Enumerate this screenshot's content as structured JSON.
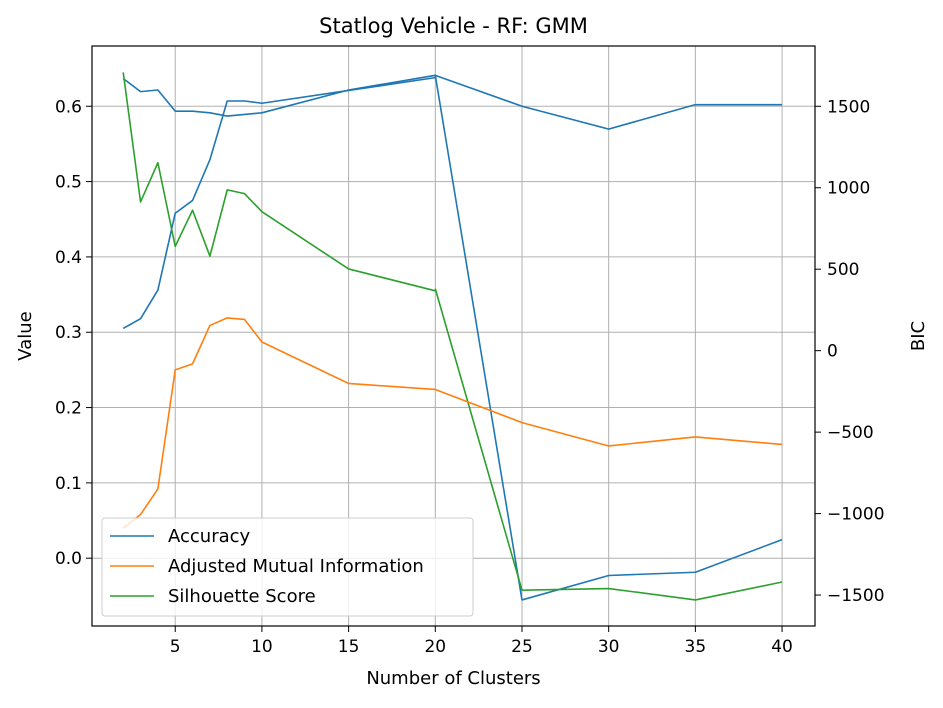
{
  "chart_data": {
    "type": "line",
    "title": "Statlog Vehicle - RF: GMM",
    "xlabel": "Number of Clusters",
    "ylabel": "Value",
    "y2label": "BIC",
    "x": [
      2,
      3,
      4,
      5,
      6,
      7,
      8,
      9,
      10,
      15,
      20,
      25,
      30,
      35,
      40
    ],
    "xlim": [
      0.2,
      41.9
    ],
    "ylim": [
      -0.09,
      0.68
    ],
    "y2lim": [
      -1690,
      1870
    ],
    "xticks": [
      5,
      10,
      15,
      20,
      25,
      30,
      35,
      40
    ],
    "yticks": [
      0.0,
      0.1,
      0.2,
      0.3,
      0.4,
      0.5,
      0.6
    ],
    "y2ticks": [
      -1500,
      -1000,
      -500,
      0,
      500,
      1000,
      1500
    ],
    "xtick_labels": [
      "5",
      "10",
      "15",
      "20",
      "25",
      "30",
      "35",
      "40"
    ],
    "ytick_labels": [
      "0.0",
      "0.1",
      "0.2",
      "0.3",
      "0.4",
      "0.5",
      "0.6"
    ],
    "y2tick_labels": [
      "−1500",
      "−1000",
      "−500",
      "0",
      "500",
      "1000",
      "1500"
    ],
    "grid": true,
    "legend_position": "lower-left",
    "series": [
      {
        "name": "Accuracy",
        "axis": "left",
        "color": "#1f77b4",
        "values": [
          0.305,
          0.318,
          0.356,
          0.458,
          0.475,
          0.529,
          0.607,
          0.607,
          0.604,
          0.621,
          0.638,
          null,
          null,
          null,
          null
        ]
      },
      {
        "name": "Adjusted Mutual Information",
        "axis": "left",
        "color": "#ff7f0e",
        "values": [
          0.04,
          0.058,
          0.092,
          0.25,
          0.258,
          0.309,
          0.319,
          0.317,
          0.287,
          0.232,
          0.224,
          0.18,
          0.149,
          0.161,
          0.151
        ]
      },
      {
        "name": "Silhouette Score",
        "axis": "left",
        "color": "#2ca02c",
        "values": [
          0.645,
          0.473,
          0.525,
          0.414,
          0.462,
          0.401,
          0.489,
          0.484,
          0.46,
          0.384,
          0.355,
          null,
          null,
          null,
          null
        ]
      }
    ],
    "bic_series": [
      {
        "axis": "right",
        "color": "#1f77b4",
        "values": [
          1670,
          1590,
          1600,
          1470,
          1470,
          1460,
          1440,
          1450,
          1460,
          1600,
          1690,
          1500,
          1360,
          1510,
          1510
        ]
      },
      {
        "axis": "right",
        "color": "#1f77b4",
        "values": [
          null,
          null,
          null,
          null,
          null,
          null,
          null,
          null,
          null,
          null,
          1690,
          -1530,
          -1380,
          -1360,
          -1160
        ]
      },
      {
        "axis": "right",
        "color": "#2ca02c",
        "values": [
          null,
          null,
          null,
          null,
          null,
          null,
          null,
          null,
          null,
          null,
          380,
          -1470,
          -1460,
          -1530,
          -1420
        ]
      }
    ]
  }
}
